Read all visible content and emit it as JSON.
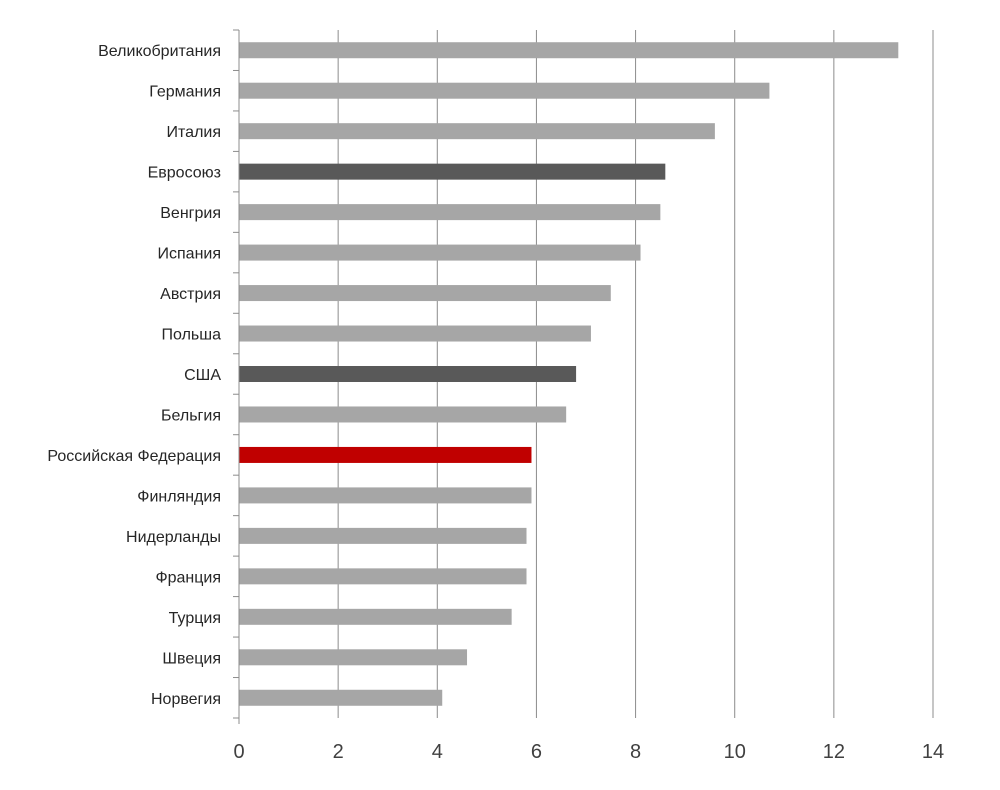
{
  "chart_data": {
    "type": "bar",
    "orientation": "horizontal",
    "title": "",
    "xlabel": "",
    "ylabel": "",
    "xlim": [
      0,
      14
    ],
    "x_ticks": [
      0,
      2,
      4,
      6,
      8,
      10,
      12,
      14
    ],
    "grid": "vertical",
    "legend": "none",
    "categories": [
      "Великобритания",
      "Германия",
      "Италия",
      "Евросоюз",
      "Венгрия",
      "Испания",
      "Австрия",
      "Польша",
      "США",
      "Бельгия",
      "Российская Федерация",
      "Финляндия",
      "Нидерланды",
      "Франция",
      "Турция",
      "Швеция",
      "Норвегия"
    ],
    "values": [
      13.3,
      10.7,
      9.6,
      8.6,
      8.5,
      8.1,
      7.5,
      7.1,
      6.8,
      6.6,
      5.9,
      5.9,
      5.8,
      5.8,
      5.5,
      4.6,
      4.1
    ],
    "bar_colors": [
      "#a6a6a6",
      "#a6a6a6",
      "#a6a6a6",
      "#595959",
      "#a6a6a6",
      "#a6a6a6",
      "#a6a6a6",
      "#a6a6a6",
      "#595959",
      "#a6a6a6",
      "#c00000",
      "#a6a6a6",
      "#a6a6a6",
      "#a6a6a6",
      "#a6a6a6",
      "#a6a6a6",
      "#a6a6a6"
    ],
    "colors": {
      "default": "#a6a6a6",
      "aggregate": "#595959",
      "highlight": "#c00000",
      "grid": "#8c8c8c",
      "axis": "#8c8c8c"
    }
  }
}
